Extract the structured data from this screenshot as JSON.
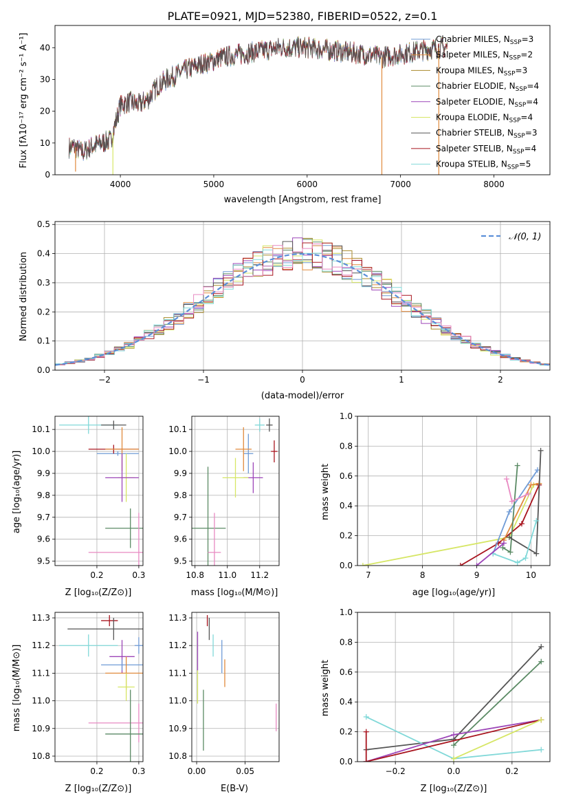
{
  "colors": {
    "chabrier_miles": "#6f9bd6",
    "salpeter_miles": "#e08a3c",
    "kroupa_miles": "#a88a2a",
    "chabrier_elodie": "#5a8a64",
    "salpeter_elodie": "#9c45b8",
    "kroupa_elodie": "#d6e665",
    "chabrier_stelib": "#555555",
    "salpeter_stelib": "#a8141e",
    "kroupa_stelib": "#80d8d8",
    "pink": "#e889c2",
    "normal": "#5b8fd8"
  },
  "chart_data": [
    {
      "id": "spectrum",
      "type": "line",
      "title": "PLATE=0921, MJD=52380, FIBERID=0522, z=0.1",
      "xlabel": "wavelength [Angstrom, rest frame]",
      "ylabel": "Flux [fλ10⁻¹⁷ erg cm⁻² s⁻¹ A⁻¹]",
      "xlim": [
        3300,
        8600
      ],
      "ylim": [
        0,
        47
      ],
      "xticks": [
        "4000",
        "5000",
        "6000",
        "7000",
        "8000"
      ],
      "yticks": [
        "0",
        "10",
        "20",
        "30",
        "40"
      ],
      "legend_position": "top-right",
      "legend": [
        {
          "label": "Chabrier MILES, N_SSP=3",
          "color": "chabrier_miles"
        },
        {
          "label": "Salpeter MILES, N_SSP=2",
          "color": "salpeter_miles"
        },
        {
          "label": "Kroupa MILES, N_SSP=3",
          "color": "kroupa_miles"
        },
        {
          "label": "Chabrier ELODIE, N_SSP=4",
          "color": "chabrier_elodie"
        },
        {
          "label": "Salpeter ELODIE, N_SSP=4",
          "color": "salpeter_elodie"
        },
        {
          "label": "Kroupa ELODIE, N_SSP=4",
          "color": "kroupa_elodie"
        },
        {
          "label": "Chabrier STELIB, N_SSP=3",
          "color": "chabrier_stelib"
        },
        {
          "label": "Salpeter STELIB, N_SSP=4",
          "color": "salpeter_stelib"
        },
        {
          "label": "Kroupa STELIB, N_SSP=5",
          "color": "kroupa_stelib"
        }
      ],
      "continuum_knots": {
        "x": [
          3450,
          3500,
          3600,
          3700,
          3800,
          3900,
          4000,
          4100,
          4200,
          4300,
          4400,
          4500,
          4700,
          4900,
          5100,
          5300,
          5500,
          5700,
          6000,
          6300,
          6600,
          6800,
          7000,
          7200,
          7400,
          7500
        ],
        "y": [
          8.5,
          9,
          7,
          9,
          10,
          11,
          22,
          23,
          22,
          24,
          28,
          30,
          33,
          35,
          37,
          38,
          39,
          40,
          40,
          39,
          38,
          37,
          38,
          39,
          40,
          40
        ]
      },
      "drops": [
        {
          "x": 3520,
          "y": 1,
          "color": "salpeter_miles"
        },
        {
          "x": 3920,
          "y": 0,
          "color": "kroupa_elodie"
        },
        {
          "x": 6800,
          "y": 0,
          "color": "salpeter_miles"
        },
        {
          "x": 7410,
          "y": 0,
          "color": "salpeter_miles"
        }
      ]
    },
    {
      "id": "residuals",
      "type": "bar",
      "xlabel": "(data-model)/error",
      "ylabel": "Normed distribution",
      "xlim": [
        -2.5,
        2.5
      ],
      "ylim": [
        0,
        0.51
      ],
      "xticks": [
        "−2",
        "−1",
        "0",
        "1",
        "2"
      ],
      "yticks": [
        "0.0",
        "0.1",
        "0.2",
        "0.3",
        "0.4",
        "0.5"
      ],
      "legend_position": "top-right",
      "legend": [
        {
          "label": "𝒩(0, 1)",
          "color": "normal"
        }
      ],
      "bins": 50,
      "series_colors": [
        "chabrier_miles",
        "salpeter_miles",
        "kroupa_miles",
        "chabrier_elodie",
        "salpeter_elodie",
        "kroupa_elodie",
        "chabrier_stelib",
        "salpeter_stelib",
        "kroupa_stelib",
        "pink"
      ]
    },
    {
      "id": "age_vs_Z",
      "type": "scatter",
      "xlabel": "Z [log₁₀(Z/Z⊙)]",
      "ylabel": "age  [log₁₀(age/yr)]",
      "xlim": [
        0.1,
        0.31
      ],
      "ylim": [
        9.48,
        10.16
      ],
      "xticks": [
        "0.2",
        "0.3"
      ],
      "yticks": [
        "9.5",
        "9.6",
        "9.7",
        "9.8",
        "9.9",
        "10.0",
        "10.1"
      ],
      "points": [
        {
          "x": 0.18,
          "y": 10.12,
          "xerr": 0.07,
          "yerr": 0.04,
          "color": "kroupa_stelib"
        },
        {
          "x": 0.24,
          "y": 10.12,
          "xerr": 0.03,
          "yerr": 0.02,
          "color": "chabrier_stelib"
        },
        {
          "x": 0.25,
          "y": 9.99,
          "xerr": 0.05,
          "yerr": 0.01,
          "color": "chabrier_miles"
        },
        {
          "x": 0.24,
          "y": 10.01,
          "xerr": 0.06,
          "yerr": 0.02,
          "color": "salpeter_stelib"
        },
        {
          "x": 0.26,
          "y": 10.01,
          "xerr": 0.04,
          "yerr": 0.1,
          "color": "salpeter_miles"
        },
        {
          "x": 0.27,
          "y": 9.88,
          "xerr": 0.02,
          "yerr": 0.11,
          "color": "kroupa_elodie"
        },
        {
          "x": 0.26,
          "y": 9.88,
          "xerr": 0.04,
          "yerr": 0.11,
          "color": "salpeter_elodie"
        },
        {
          "x": 0.28,
          "y": 9.65,
          "xerr": 0.06,
          "yerr": 0.09,
          "color": "chabrier_elodie"
        },
        {
          "x": 0.3,
          "y": 9.54,
          "xerr": 0.12,
          "yerr": 0.18,
          "color": "pink"
        }
      ]
    },
    {
      "id": "age_vs_mass",
      "type": "scatter",
      "xlabel": "mass [log₁₀(M/M⊙)]",
      "ylabel": "",
      "xlim": [
        10.78,
        11.32
      ],
      "ylim": [
        9.48,
        10.16
      ],
      "xticks": [
        "10.8",
        "11.0",
        "11.2"
      ],
      "yticks": [
        "9.5",
        "9.6",
        "9.7",
        "9.8",
        "9.9",
        "10.0",
        "10.1"
      ],
      "points": [
        {
          "x": 11.2,
          "y": 10.12,
          "xerr": 0.03,
          "yerr": 0.03,
          "color": "kroupa_stelib"
        },
        {
          "x": 11.26,
          "y": 10.12,
          "xerr": 0.02,
          "yerr": 0.03,
          "color": "chabrier_stelib"
        },
        {
          "x": 11.29,
          "y": 10.0,
          "xerr": 0.02,
          "yerr": 0.05,
          "color": "salpeter_stelib"
        },
        {
          "x": 11.13,
          "y": 9.99,
          "xerr": 0.03,
          "yerr": 0.09,
          "color": "chabrier_miles"
        },
        {
          "x": 11.1,
          "y": 10.01,
          "xerr": 0.05,
          "yerr": 0.1,
          "color": "salpeter_miles"
        },
        {
          "x": 11.16,
          "y": 9.88,
          "xerr": 0.06,
          "yerr": 0.07,
          "color": "salpeter_elodie"
        },
        {
          "x": 11.05,
          "y": 9.88,
          "xerr": 0.08,
          "yerr": 0.09,
          "color": "kroupa_elodie"
        },
        {
          "x": 10.88,
          "y": 9.65,
          "xerr": 0.11,
          "yerr": 0.28,
          "color": "chabrier_elodie"
        },
        {
          "x": 10.92,
          "y": 9.54,
          "xerr": 0.04,
          "yerr": 0.18,
          "color": "pink"
        }
      ]
    },
    {
      "id": "weight_vs_age",
      "type": "line",
      "xlabel": "age  [log₁₀(age/yr)]",
      "ylabel": "mass weight",
      "xlim": [
        6.8,
        10.35
      ],
      "ylim": [
        0,
        1
      ],
      "xticks": [
        "7",
        "8",
        "9",
        "10"
      ],
      "yticks": [
        "0.0",
        "0.2",
        "0.4",
        "0.6",
        "0.8",
        "1.0"
      ],
      "series": [
        {
          "color": "kroupa_elodie",
          "x": [
            6.9,
            9.6,
            10.05,
            10.15
          ],
          "y": [
            0.0,
            0.19,
            0.54,
            0.55
          ]
        },
        {
          "color": "salpeter_stelib",
          "x": [
            8.7,
            9.4,
            9.83,
            10.15
          ],
          "y": [
            0.0,
            0.15,
            0.28,
            0.54
          ]
        },
        {
          "color": "chabrier_miles",
          "x": [
            9.3,
            9.6,
            10.12
          ],
          "y": [
            0.08,
            0.36,
            0.64
          ]
        },
        {
          "color": "salpeter_miles",
          "x": [
            9.5,
            10.0,
            10.15
          ],
          "y": [
            0.17,
            0.54,
            0.55
          ]
        },
        {
          "color": "chabrier_elodie",
          "x": [
            9.48,
            9.62,
            9.75
          ],
          "y": [
            0.12,
            0.09,
            0.67
          ]
        },
        {
          "color": "pink",
          "x": [
            9.55,
            9.65,
            9.95
          ],
          "y": [
            0.58,
            0.43,
            0.48
          ]
        },
        {
          "color": "chabrier_stelib",
          "x": [
            9.6,
            10.1,
            10.18
          ],
          "y": [
            0.19,
            0.08,
            0.77
          ]
        },
        {
          "color": "kroupa_stelib",
          "x": [
            9.3,
            9.75,
            9.9,
            10.1
          ],
          "y": [
            0.08,
            0.02,
            0.05,
            0.3
          ]
        },
        {
          "color": "salpeter_elodie",
          "x": [
            9.0,
            9.5
          ],
          "y": [
            0.0,
            0.15
          ]
        }
      ]
    },
    {
      "id": "mass_vs_Z",
      "type": "scatter",
      "xlabel": "Z [log₁₀(Z/Z⊙)]",
      "ylabel": "mass [log₁₀(M/M⊙)]",
      "xlim": [
        0.1,
        0.31
      ],
      "ylim": [
        10.78,
        11.32
      ],
      "xticks": [
        "0.2",
        "0.3"
      ],
      "yticks": [
        "10.8",
        "10.9",
        "11.0",
        "11.1",
        "11.2",
        "11.3"
      ],
      "points": [
        {
          "x": 0.23,
          "y": 11.29,
          "xerr": 0.02,
          "yerr": 0.02,
          "color": "salpeter_stelib"
        },
        {
          "x": 0.24,
          "y": 11.26,
          "xerr": 0.11,
          "yerr": 0.04,
          "color": "chabrier_stelib"
        },
        {
          "x": 0.18,
          "y": 11.2,
          "xerr": 0.07,
          "yerr": 0.04,
          "color": "kroupa_stelib"
        },
        {
          "x": 0.3,
          "y": 11.2,
          "xerr": 0.01,
          "yerr": 0.03,
          "color": "chabrier_miles"
        },
        {
          "x": 0.26,
          "y": 11.16,
          "xerr": 0.03,
          "yerr": 0.06,
          "color": "salpeter_elodie"
        },
        {
          "x": 0.26,
          "y": 11.13,
          "xerr": 0.05,
          "yerr": 0.02,
          "color": "chabrier_miles"
        },
        {
          "x": 0.27,
          "y": 11.1,
          "xerr": 0.05,
          "yerr": 0.06,
          "color": "salpeter_miles"
        },
        {
          "x": 0.27,
          "y": 11.05,
          "xerr": 0.02,
          "yerr": 0.05,
          "color": "kroupa_elodie"
        },
        {
          "x": 0.3,
          "y": 10.92,
          "xerr": 0.12,
          "yerr": 0.07,
          "color": "pink"
        },
        {
          "x": 0.28,
          "y": 10.88,
          "xerr": 0.06,
          "yerr": 0.16,
          "color": "chabrier_elodie"
        }
      ]
    },
    {
      "id": "mass_vs_ebv",
      "type": "scatter",
      "xlabel": "E(B-V)",
      "ylabel": "",
      "xlim": [
        -0.005,
        0.085
      ],
      "ylim": [
        10.78,
        11.32
      ],
      "xticks": [
        "0.00",
        "0.05"
      ],
      "yticks": [
        "10.8",
        "10.9",
        "11.0",
        "11.1",
        "11.2",
        "11.3"
      ],
      "points": [
        {
          "x": 0.011,
          "y": 11.29,
          "xerr": 0,
          "yerr": 0.02,
          "color": "salpeter_stelib"
        },
        {
          "x": 0.013,
          "y": 11.26,
          "xerr": 0,
          "yerr": 0.04,
          "color": "chabrier_stelib"
        },
        {
          "x": 0.017,
          "y": 11.2,
          "xerr": 0,
          "yerr": 0.04,
          "color": "kroupa_stelib"
        },
        {
          "x": 0.001,
          "y": 11.18,
          "xerr": 0,
          "yerr": 0.07,
          "color": "salpeter_elodie"
        },
        {
          "x": 0.026,
          "y": 11.16,
          "xerr": 0,
          "yerr": 0.06,
          "color": "chabrier_miles"
        },
        {
          "x": 0.029,
          "y": 11.1,
          "xerr": 0,
          "yerr": 0.05,
          "color": "salpeter_miles"
        },
        {
          "x": 0.001,
          "y": 11.05,
          "xerr": 0,
          "yerr": 0.06,
          "color": "kroupa_elodie"
        },
        {
          "x": 0.082,
          "y": 10.94,
          "xerr": 0,
          "yerr": 0.05,
          "color": "pink"
        },
        {
          "x": 0.007,
          "y": 10.93,
          "xerr": 0,
          "yerr": 0.11,
          "color": "chabrier_elodie"
        }
      ]
    },
    {
      "id": "weight_vs_Z",
      "type": "line",
      "xlabel": "Z [log₁₀(Z/Z⊙)]",
      "ylabel": "mass weight",
      "xlim": [
        -0.33,
        0.33
      ],
      "ylim": [
        0,
        1
      ],
      "xticks": [
        "−0.2",
        "0.0",
        "0.2"
      ],
      "yticks": [
        "0.0",
        "0.2",
        "0.4",
        "0.6",
        "0.8",
        "1.0"
      ],
      "series": [
        {
          "color": "chabrier_stelib",
          "x": [
            -0.3,
            0.0,
            0.3
          ],
          "y": [
            0.08,
            0.15,
            0.77
          ]
        },
        {
          "color": "chabrier_elodie",
          "x": [
            0.0,
            0.3
          ],
          "y": [
            0.11,
            0.67
          ]
        },
        {
          "color": "kroupa_stelib",
          "x": [
            -0.3,
            0.0,
            0.3
          ],
          "y": [
            0.3,
            0.02,
            0.08
          ]
        },
        {
          "color": "salpeter_elodie",
          "x": [
            -0.3,
            0.0,
            0.3
          ],
          "y": [
            0.0,
            0.18,
            0.28
          ]
        },
        {
          "color": "salpeter_stelib",
          "x": [
            -0.3,
            0.3
          ],
          "y": [
            0.0,
            0.28
          ]
        },
        {
          "color": "kroupa_elodie",
          "x": [
            0.0,
            0.3
          ],
          "y": [
            0.02,
            0.28
          ]
        },
        {
          "color": "salpeter_stelib",
          "x": [
            -0.3,
            -0.3
          ],
          "y": [
            0.0,
            0.2
          ]
        }
      ]
    }
  ]
}
